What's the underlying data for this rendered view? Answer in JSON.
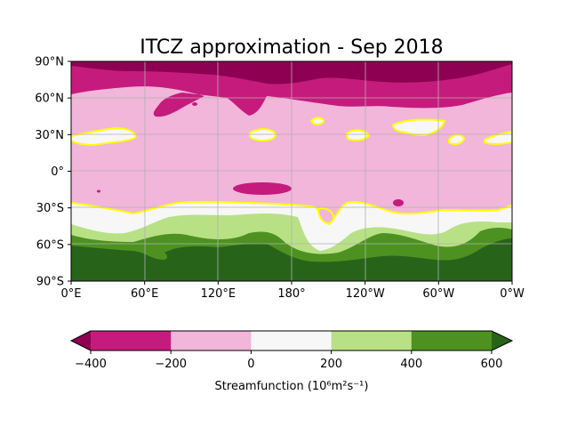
{
  "chart_data": {
    "type": "heatmap",
    "subtype": "filled-contour-map",
    "title": "ITCZ approximation - Sep 2018",
    "x_ticks": [
      "0°E",
      "60°E",
      "120°E",
      "180°",
      "120°W",
      "60°W",
      "0°W"
    ],
    "y_ticks": [
      "90°N",
      "60°N",
      "30°N",
      "0°",
      "30°S",
      "60°S",
      "90°S"
    ],
    "x_range_deg_east": [
      0,
      360
    ],
    "y_range_deg_lat": [
      -90,
      90
    ],
    "grid": true,
    "colorbar": {
      "label": "Streamfunction (10⁶m²s⁻¹)",
      "tick_labels": [
        "−400",
        "−200",
        "0",
        "200",
        "400",
        "600"
      ],
      "levels": [
        -400,
        -200,
        0,
        200,
        400,
        600
      ],
      "extend": "both",
      "colors": {
        "below": "#8e0152",
        "bins": [
          "#c51b7d",
          "#f1b6da",
          "#f7f7f7",
          "#b8e186",
          "#4d9221"
        ],
        "above": "#276419"
      }
    },
    "contour_highlight": {
      "level": 0,
      "color": "#ffff00"
    },
    "field_bands": [
      {
        "range": "< -400",
        "lat_approx": "80N to 90N"
      },
      {
        "range": "-400 to -200",
        "lat_approx": "50N to 80N"
      },
      {
        "range": "-200 to 0",
        "lat_approx": "28S to 50N"
      },
      {
        "range": "0 to 200",
        "lat_approx": "28S to 40S"
      },
      {
        "range": "200 to 400",
        "lat_approx": "40S to 50S"
      },
      {
        "range": "400 to 600",
        "lat_approx": "50S to 60S"
      },
      {
        "range": "> 600",
        "lat_approx": "60S to 90S"
      }
    ]
  }
}
